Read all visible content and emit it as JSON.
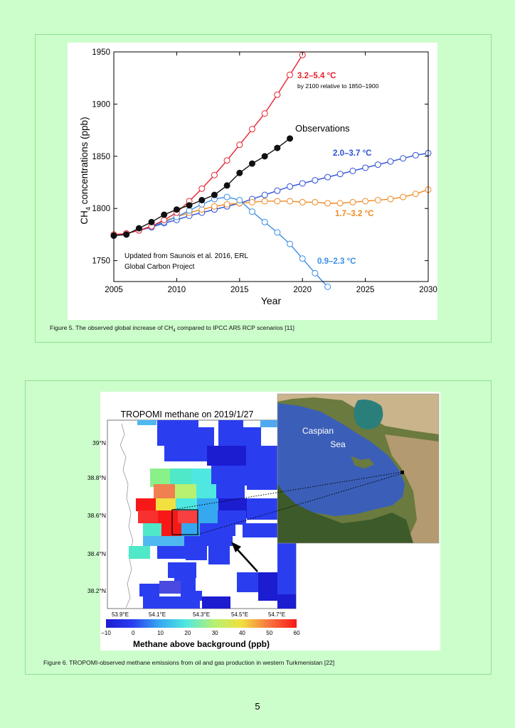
{
  "figure5": {
    "caption_pre": "Figure 5. The observed global increase of CH",
    "caption_sub": "4",
    "caption_post": " compared to IPCC AR5 RCP scenarios [11]",
    "credit_line1": "Updated from Saunois et al. 2016, ERL",
    "credit_line2": "Global Carbon Project",
    "ylabel_pre": "CH",
    "ylabel_sub": "4",
    "ylabel_post": " concentrations (ppb)",
    "scenario_note": "by 2100 relative to 1850–1900",
    "colors": {
      "red": "#e8212e",
      "black": "#111111",
      "blue": "#2c4fd6",
      "orange": "#f08a22",
      "lightblue": "#3a8ee8"
    }
  },
  "chart_data": {
    "type": "line",
    "title": "",
    "xlabel": "Year",
    "ylabel": "CH4 concentrations (ppb)",
    "xlim": [
      2005,
      2030
    ],
    "ylim": [
      1730,
      1950
    ],
    "xticks": [
      2005,
      2010,
      2015,
      2020,
      2025,
      2030
    ],
    "yticks": [
      1750,
      1800,
      1850,
      1900,
      1950
    ],
    "series": [
      {
        "name": "3.2–5.4 °C",
        "color": "#e8212e",
        "marker": "open",
        "x": [
          2005,
          2006,
          2007,
          2008,
          2009,
          2010,
          2011,
          2012,
          2013,
          2014,
          2015,
          2016,
          2017,
          2018,
          2019,
          2020
        ],
        "y": [
          1775,
          1776,
          1779,
          1783,
          1789,
          1796,
          1807,
          1819,
          1832,
          1846,
          1861,
          1876,
          1891,
          1909,
          1928,
          1947
        ]
      },
      {
        "name": "Observations",
        "color": "#111111",
        "marker": "filled",
        "x": [
          2005,
          2006,
          2007,
          2008,
          2009,
          2010,
          2011,
          2012,
          2013,
          2014,
          2015,
          2016,
          2017,
          2018,
          2019
        ],
        "y": [
          1774,
          1775,
          1781,
          1787,
          1794,
          1799,
          1803,
          1808,
          1813,
          1822,
          1834,
          1843,
          1850,
          1858,
          1867
        ]
      },
      {
        "name": "2.0–3.7 °C",
        "color": "#2c4fd6",
        "marker": "open",
        "x": [
          2005,
          2006,
          2007,
          2008,
          2009,
          2010,
          2011,
          2012,
          2013,
          2014,
          2015,
          2016,
          2017,
          2018,
          2019,
          2020,
          2021,
          2022,
          2023,
          2024,
          2025,
          2026,
          2027,
          2028,
          2029,
          2030
        ],
        "y": [
          1774,
          1776,
          1779,
          1782,
          1786,
          1789,
          1793,
          1796,
          1799,
          1802,
          1805,
          1809,
          1813,
          1817,
          1821,
          1824,
          1827,
          1830,
          1833,
          1836,
          1839,
          1842,
          1845,
          1848,
          1851,
          1853
        ]
      },
      {
        "name": "1.7–3.2 °C",
        "color": "#f08a22",
        "marker": "open",
        "x": [
          2005,
          2006,
          2007,
          2008,
          2009,
          2010,
          2011,
          2012,
          2013,
          2014,
          2015,
          2016,
          2017,
          2018,
          2019,
          2020,
          2021,
          2022,
          2023,
          2024,
          2025,
          2026,
          2027,
          2028,
          2029,
          2030
        ],
        "y": [
          1774,
          1776,
          1779,
          1783,
          1788,
          1792,
          1796,
          1799,
          1802,
          1804,
          1805,
          1806,
          1807,
          1807,
          1807,
          1806,
          1806,
          1805,
          1805,
          1806,
          1807,
          1808,
          1809,
          1811,
          1814,
          1818
        ]
      },
      {
        "name": "0.9–2.3 °C",
        "color": "#3a8ee8",
        "marker": "open",
        "x": [
          2005,
          2006,
          2007,
          2008,
          2009,
          2010,
          2011,
          2012,
          2013,
          2014,
          2015,
          2016,
          2017,
          2018,
          2019,
          2020,
          2021,
          2022
        ],
        "y": [
          1774,
          1776,
          1779,
          1783,
          1787,
          1792,
          1798,
          1804,
          1809,
          1811,
          1808,
          1797,
          1787,
          1777,
          1766,
          1752,
          1738,
          1725
        ]
      }
    ],
    "annotations": [
      "3.2–5.4 °C",
      "by 2100 relative to 1850–1900",
      "Observations",
      "2.0–3.7 °C",
      "1.7–3.2 °C",
      "0.9–2.3 °C",
      "Updated from Saunois et al. 2016, ERL",
      "Global Carbon Project"
    ]
  },
  "figure6": {
    "map_title": "TROPOMI methane on 2019/1/27",
    "lat_labels": [
      "39°N",
      "38.8°N",
      "38.6°N",
      "38.4°N",
      "38.2°N"
    ],
    "lon_labels": [
      "53.9°E",
      "54.1°E",
      "54.3°E",
      "54.5°E",
      "54.7°E"
    ],
    "colorbar_ticks": [
      "−10",
      "0",
      "10",
      "20",
      "30",
      "40",
      "50",
      "60"
    ],
    "colorbar_label": "Methane above background (ppb)",
    "inset_label_line1": "Caspian",
    "inset_label_line2": "Sea",
    "caption": "Figure 6. TROPOMI-observed methane emissions from oil and gas production in western Turkmenistan [22]"
  },
  "page": {
    "number": "5"
  }
}
